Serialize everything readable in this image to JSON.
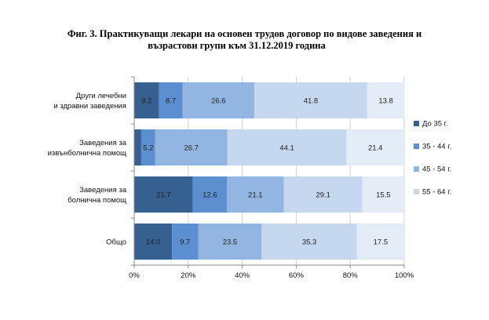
{
  "title_line1": "Фиг. 3. Практикуващи лекари на основен трудов договор по видове заведения и",
  "title_line2": "възрастови групи към 31.12.2019 година",
  "chart_data": {
    "type": "bar",
    "orientation": "horizontal",
    "stacked": "percent",
    "title": "Фиг. 3. Практикуващи лекари на основен трудов договор по видове заведения и възрастови групи към 31.12.2019 година",
    "categories": [
      [
        "Други лечебни",
        "и здравни заведения"
      ],
      [
        "Заведения за",
        "извънболнична помощ"
      ],
      [
        "Заведения за",
        "болнична помощ"
      ],
      [
        "Общо"
      ]
    ],
    "series": [
      {
        "name": "До 35 г.",
        "color": "#35608f",
        "values": [
          9.2,
          2.6,
          21.7,
          14.0
        ],
        "labels": [
          "9.2",
          "",
          "21.7",
          "14.0"
        ]
      },
      {
        "name": "35 - 44 г.",
        "color": "#5b8fcf",
        "values": [
          8.7,
          5.2,
          12.6,
          9.7
        ],
        "labels": [
          "8.7",
          "5.2",
          "12.6",
          "9.7"
        ]
      },
      {
        "name": "45 - 54 г.",
        "color": "#93b5e1",
        "values": [
          26.6,
          26.7,
          21.1,
          23.5
        ],
        "labels": [
          "26.6",
          "26.7",
          "21.1",
          "23.5"
        ]
      },
      {
        "name": "55 - 64 г.",
        "color": "#c6d8ef",
        "values": [
          41.8,
          44.1,
          29.1,
          35.3
        ],
        "labels": [
          "41.8",
          "44.1",
          "29.1",
          "35.3"
        ]
      },
      {
        "name": "",
        "color": "#e4ecf7",
        "values": [
          13.8,
          21.4,
          15.5,
          17.5
        ],
        "labels": [
          "13.8",
          "21.4",
          "15.5",
          "17.5"
        ]
      }
    ],
    "xlim": [
      0,
      100
    ],
    "xticks": [
      "0%",
      "20%",
      "40%",
      "60%",
      "80%",
      "100%"
    ],
    "grid": "vertical",
    "legend": "right"
  }
}
